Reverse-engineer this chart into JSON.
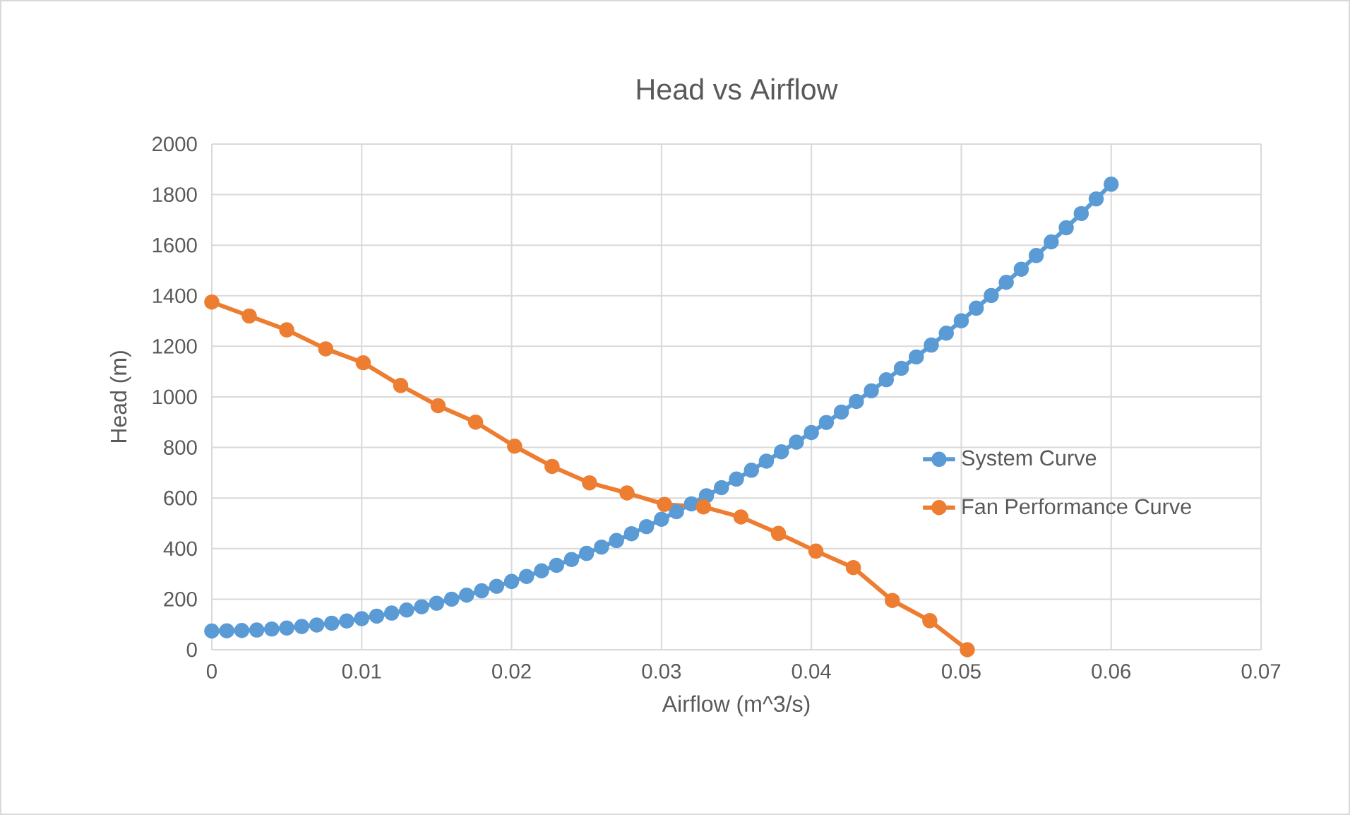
{
  "chart_data": {
    "type": "line",
    "title": "Head vs Airflow",
    "xlabel": "Airflow (m^3/s)",
    "ylabel": "Head (m)",
    "xlim": [
      0,
      0.07
    ],
    "xticks": [
      0,
      0.01,
      0.02,
      0.03,
      0.04,
      0.05,
      0.06,
      0.07
    ],
    "ylim": [
      0,
      2000
    ],
    "yticks": [
      0,
      200,
      400,
      600,
      800,
      1000,
      1200,
      1400,
      1600,
      1800,
      2000
    ],
    "grid": true,
    "legend": "right",
    "marker": "circle",
    "line_style": "solid",
    "series": [
      {
        "name": "System Curve",
        "color": "#5b9bd5",
        "x": [
          0,
          0.001,
          0.002,
          0.003,
          0.004,
          0.005,
          0.006,
          0.007,
          0.008,
          0.009,
          0.01,
          0.011,
          0.012,
          0.013,
          0.014,
          0.015,
          0.016,
          0.017,
          0.018,
          0.019,
          0.02,
          0.021,
          0.022,
          0.023,
          0.024,
          0.025,
          0.026,
          0.027,
          0.028,
          0.029,
          0.03,
          0.031,
          0.032,
          0.033,
          0.034,
          0.035,
          0.036,
          0.037,
          0.038,
          0.039,
          0.04,
          0.041,
          0.042,
          0.043,
          0.044,
          0.045,
          0.046,
          0.047,
          0.048,
          0.049,
          0.05,
          0.051,
          0.052,
          0.053,
          0.054,
          0.055,
          0.056,
          0.057,
          0.058,
          0.059,
          0.06
        ],
        "values": [
          74,
          75,
          76,
          78,
          82,
          86,
          92,
          98,
          105,
          114,
          123,
          133,
          145,
          157,
          170,
          184,
          200,
          216,
          233,
          251,
          270,
          290,
          312,
          334,
          357,
          381,
          406,
          432,
          459,
          487,
          516,
          546,
          577,
          609,
          641,
          675,
          710,
          746,
          783,
          821,
          859,
          899,
          940,
          982,
          1024,
          1068,
          1113,
          1158,
          1205,
          1252,
          1301,
          1351,
          1401,
          1453,
          1505,
          1559,
          1613,
          1669,
          1725,
          1783,
          1841
        ]
      },
      {
        "name": "Fan Performance Curve",
        "color": "#ed7d31",
        "x": [
          0,
          0.0025,
          0.005,
          0.0076,
          0.0101,
          0.0126,
          0.0151,
          0.0176,
          0.0202,
          0.0227,
          0.0252,
          0.0277,
          0.0302,
          0.0328,
          0.0353,
          0.0378,
          0.0403,
          0.0428,
          0.0454,
          0.0479,
          0.0504
        ],
        "values": [
          1375,
          1320,
          1265,
          1190,
          1135,
          1045,
          965,
          900,
          805,
          725,
          660,
          620,
          575,
          565,
          525,
          460,
          390,
          325,
          195,
          115,
          0
        ]
      }
    ]
  }
}
